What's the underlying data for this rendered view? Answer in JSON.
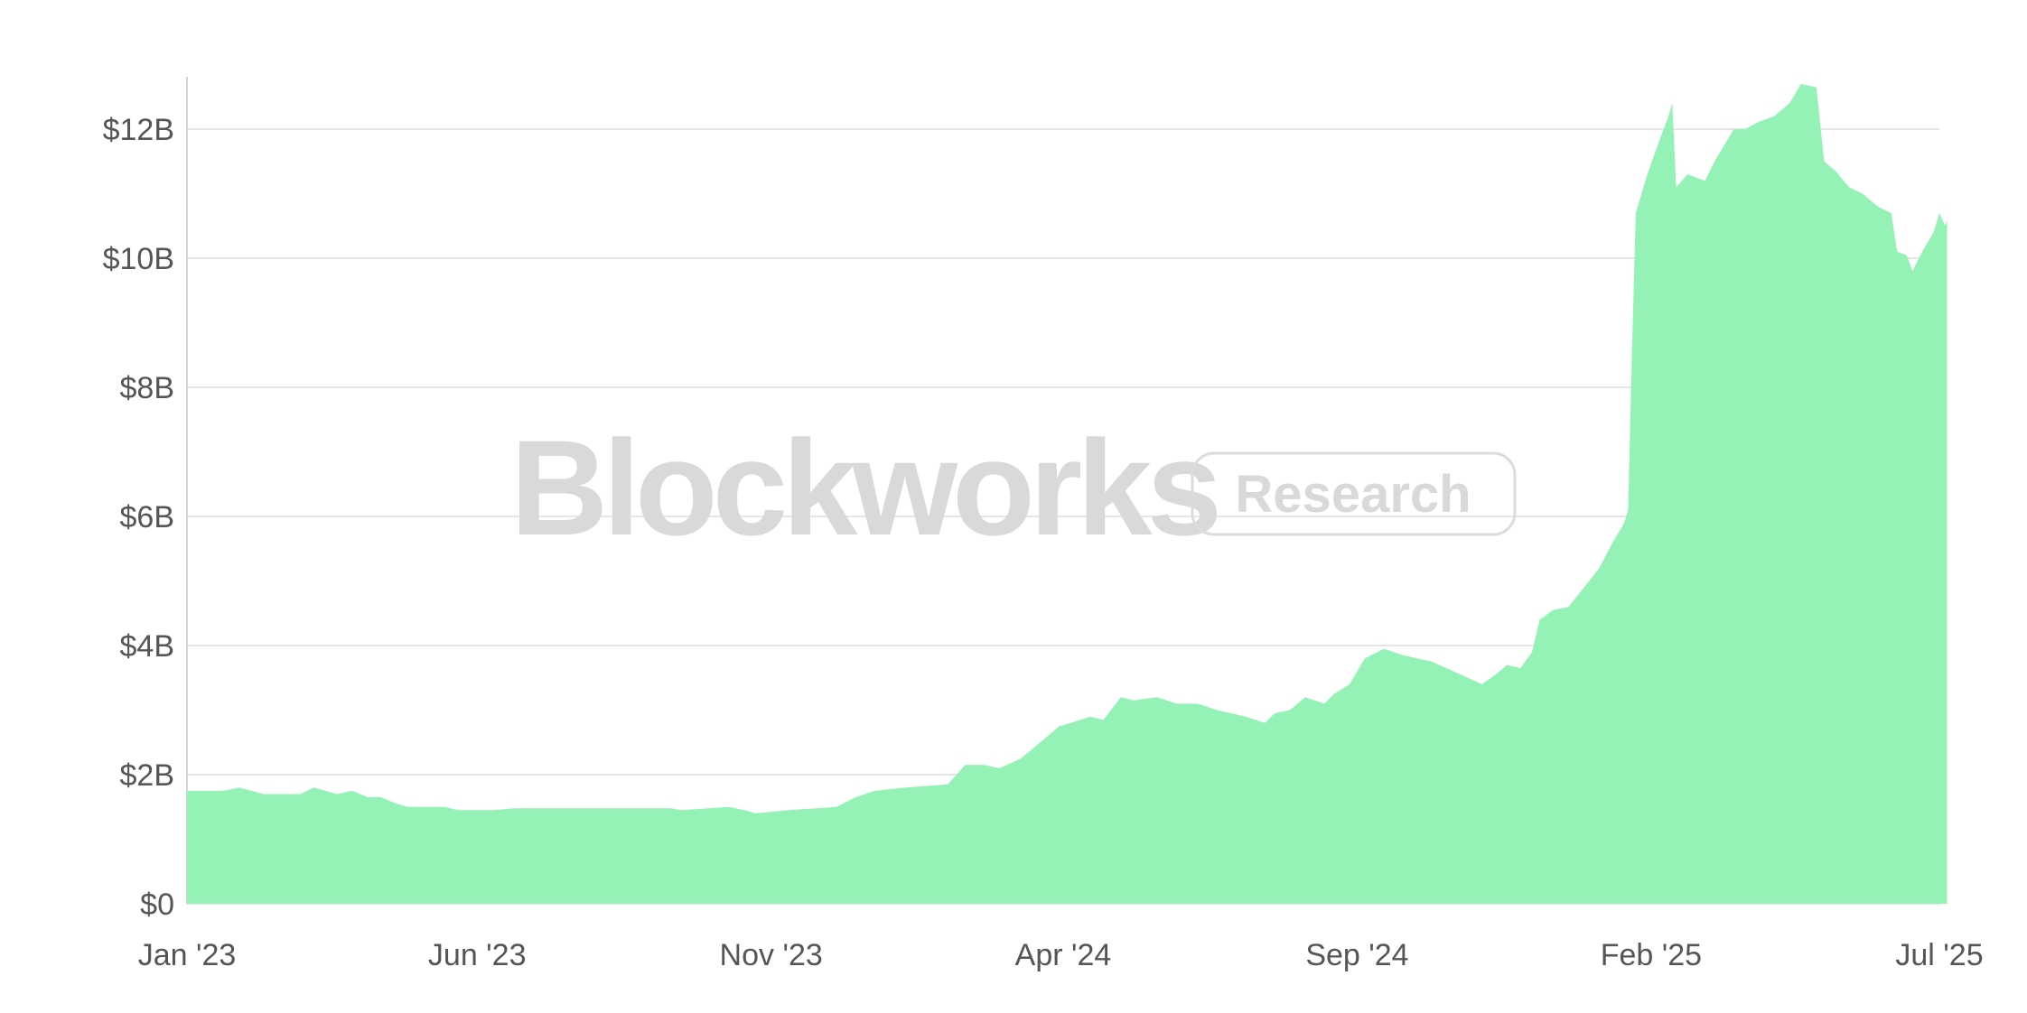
{
  "watermark": {
    "brand": "Blockworks",
    "badge": "Research"
  },
  "chart_data": {
    "type": "area",
    "title": "",
    "xlabel": "",
    "ylabel": "",
    "ylim": [
      0,
      12700000000
    ],
    "grid": true,
    "legend": "none",
    "color": "#95f2b6",
    "y_ticks": [
      {
        "value": 0,
        "label": "$0"
      },
      {
        "value": 2000000000,
        "label": "$2B"
      },
      {
        "value": 4000000000,
        "label": "$4B"
      },
      {
        "value": 6000000000,
        "label": "$6B"
      },
      {
        "value": 8000000000,
        "label": "$8B"
      },
      {
        "value": 10000000000,
        "label": "$10B"
      },
      {
        "value": 12000000000,
        "label": "$12B"
      }
    ],
    "x_ticks": [
      {
        "value": "2023-01-01",
        "label": "Jan '23"
      },
      {
        "value": "2023-06-01",
        "label": "Jun '23"
      },
      {
        "value": "2023-11-01",
        "label": "Nov '23"
      },
      {
        "value": "2024-04-01",
        "label": "Apr '24"
      },
      {
        "value": "2024-09-01",
        "label": "Sep '24"
      },
      {
        "value": "2025-02-01",
        "label": "Feb '25"
      },
      {
        "value": "2025-07-01",
        "label": "Jul '25"
      }
    ],
    "series": [
      {
        "points": [
          [
            "2023-01-01",
            1.75
          ],
          [
            "2023-01-20",
            1.75
          ],
          [
            "2023-01-28",
            1.8
          ],
          [
            "2023-02-10",
            1.7
          ],
          [
            "2023-03-01",
            1.7
          ],
          [
            "2023-03-08",
            1.8
          ],
          [
            "2023-03-20",
            1.7
          ],
          [
            "2023-03-28",
            1.75
          ],
          [
            "2023-04-05",
            1.65
          ],
          [
            "2023-04-12",
            1.65
          ],
          [
            "2023-04-20",
            1.55
          ],
          [
            "2023-04-26",
            1.5
          ],
          [
            "2023-05-15",
            1.5
          ],
          [
            "2023-05-22",
            1.45
          ],
          [
            "2023-06-10",
            1.45
          ],
          [
            "2023-06-20",
            1.48
          ],
          [
            "2023-07-15",
            1.48
          ],
          [
            "2023-08-15",
            1.48
          ],
          [
            "2023-09-10",
            1.48
          ],
          [
            "2023-09-15",
            1.45
          ],
          [
            "2023-10-10",
            1.5
          ],
          [
            "2023-10-18",
            1.45
          ],
          [
            "2023-10-24",
            1.4
          ],
          [
            "2023-11-10",
            1.45
          ],
          [
            "2023-12-05",
            1.5
          ],
          [
            "2023-12-15",
            1.65
          ],
          [
            "2023-12-25",
            1.75
          ],
          [
            "2024-01-10",
            1.8
          ],
          [
            "2024-02-01",
            1.85
          ],
          [
            "2024-02-10",
            2.15
          ],
          [
            "2024-02-20",
            2.15
          ],
          [
            "2024-02-28",
            2.1
          ],
          [
            "2024-03-10",
            2.25
          ],
          [
            "2024-03-20",
            2.5
          ],
          [
            "2024-03-30",
            2.75
          ],
          [
            "2024-04-05",
            2.8
          ],
          [
            "2024-04-15",
            2.9
          ],
          [
            "2024-04-22",
            2.85
          ],
          [
            "2024-05-01",
            3.2
          ],
          [
            "2024-05-08",
            3.15
          ],
          [
            "2024-05-20",
            3.2
          ],
          [
            "2024-05-30",
            3.1
          ],
          [
            "2024-06-10",
            3.1
          ],
          [
            "2024-06-20",
            3.0
          ],
          [
            "2024-07-05",
            2.9
          ],
          [
            "2024-07-15",
            2.8
          ],
          [
            "2024-07-20",
            2.95
          ],
          [
            "2024-07-28",
            3.0
          ],
          [
            "2024-08-05",
            3.2
          ],
          [
            "2024-08-15",
            3.1
          ],
          [
            "2024-08-20",
            3.25
          ],
          [
            "2024-08-28",
            3.4
          ],
          [
            "2024-09-05",
            3.8
          ],
          [
            "2024-09-15",
            3.95
          ],
          [
            "2024-09-25",
            3.85
          ],
          [
            "2024-10-10",
            3.75
          ],
          [
            "2024-10-25",
            3.55
          ],
          [
            "2024-11-05",
            3.4
          ],
          [
            "2024-11-12",
            3.55
          ],
          [
            "2024-11-18",
            3.7
          ],
          [
            "2024-11-25",
            3.65
          ],
          [
            "2024-12-01",
            3.9
          ],
          [
            "2024-12-05",
            4.4
          ],
          [
            "2024-12-12",
            4.55
          ],
          [
            "2024-12-20",
            4.6
          ],
          [
            "2024-12-28",
            4.9
          ],
          [
            "2025-01-05",
            5.2
          ],
          [
            "2025-01-12",
            5.6
          ],
          [
            "2025-01-18",
            5.9
          ],
          [
            "2025-01-20",
            6.1
          ],
          [
            "2025-01-22",
            8.5
          ],
          [
            "2025-01-24",
            10.7
          ],
          [
            "2025-01-30",
            11.3
          ],
          [
            "2025-02-05",
            11.8
          ],
          [
            "2025-02-10",
            12.2
          ],
          [
            "2025-02-12",
            12.4
          ],
          [
            "2025-02-14",
            11.1
          ],
          [
            "2025-02-20",
            11.3
          ],
          [
            "2025-03-01",
            11.2
          ],
          [
            "2025-03-06",
            11.5
          ],
          [
            "2025-03-12",
            11.8
          ],
          [
            "2025-03-16",
            12.0
          ],
          [
            "2025-03-22",
            12.0
          ],
          [
            "2025-03-28",
            12.1
          ],
          [
            "2025-04-06",
            12.2
          ],
          [
            "2025-04-14",
            12.4
          ],
          [
            "2025-04-20",
            12.7
          ],
          [
            "2025-04-28",
            12.65
          ],
          [
            "2025-05-02",
            11.5
          ],
          [
            "2025-05-08",
            11.35
          ],
          [
            "2025-05-15",
            11.1
          ],
          [
            "2025-05-22",
            11.0
          ],
          [
            "2025-05-30",
            10.8
          ],
          [
            "2025-06-06",
            10.7
          ],
          [
            "2025-06-09",
            10.1
          ],
          [
            "2025-06-14",
            10.05
          ],
          [
            "2025-06-17",
            9.8
          ],
          [
            "2025-06-22",
            10.1
          ],
          [
            "2025-06-28",
            10.4
          ],
          [
            "2025-07-01",
            10.7
          ],
          [
            "2025-07-04",
            10.5
          ],
          [
            "2025-07-05",
            10.6
          ]
        ]
      }
    ]
  }
}
